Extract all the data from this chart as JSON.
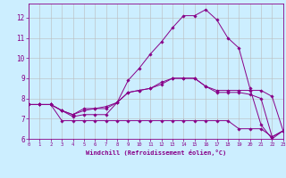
{
  "xlabel": "Windchill (Refroidissement éolien,°C)",
  "bg_color": "#cceeff",
  "line_color": "#880088",
  "grid_color": "#bbbbbb",
  "xmin": 0,
  "xmax": 23,
  "ymin": 6,
  "ymax": 12.7,
  "yticks": [
    6,
    7,
    8,
    9,
    10,
    11,
    12
  ],
  "xticks": [
    0,
    1,
    2,
    3,
    4,
    5,
    6,
    7,
    8,
    9,
    10,
    11,
    12,
    13,
    14,
    15,
    16,
    17,
    18,
    19,
    20,
    21,
    22,
    23
  ],
  "lines": [
    {
      "x": [
        0,
        1,
        2,
        3,
        4,
        5,
        6,
        7,
        8,
        9,
        10,
        11,
        12,
        13,
        14,
        15,
        16,
        17,
        18,
        19,
        20,
        21,
        22,
        23
      ],
      "y": [
        7.7,
        7.7,
        7.7,
        7.4,
        7.1,
        7.2,
        7.2,
        7.2,
        7.8,
        8.9,
        9.5,
        10.2,
        10.8,
        11.5,
        12.1,
        12.1,
        12.4,
        11.9,
        11.0,
        10.5,
        8.5,
        6.7,
        6.0,
        6.4
      ]
    },
    {
      "x": [
        0,
        1,
        2,
        3,
        4,
        5,
        6,
        7,
        8,
        9,
        10,
        11,
        12,
        13,
        14,
        15,
        16,
        17,
        18,
        19,
        20,
        21,
        22,
        23
      ],
      "y": [
        7.7,
        7.7,
        7.7,
        7.4,
        7.2,
        7.5,
        7.5,
        7.6,
        7.8,
        8.3,
        8.4,
        8.5,
        8.8,
        9.0,
        9.0,
        9.0,
        8.6,
        8.4,
        8.4,
        8.4,
        8.4,
        8.4,
        8.1,
        6.4
      ]
    },
    {
      "x": [
        0,
        1,
        2,
        3,
        4,
        5,
        6,
        7,
        8,
        9,
        10,
        11,
        12,
        13,
        14,
        15,
        16,
        17,
        18,
        19,
        20,
        21,
        22,
        23
      ],
      "y": [
        7.7,
        7.7,
        7.7,
        7.4,
        7.2,
        7.4,
        7.5,
        7.5,
        7.8,
        8.3,
        8.4,
        8.5,
        8.7,
        9.0,
        9.0,
        9.0,
        8.6,
        8.3,
        8.3,
        8.3,
        8.2,
        8.0,
        6.1,
        6.4
      ]
    },
    {
      "x": [
        0,
        1,
        2,
        3,
        4,
        5,
        6,
        7,
        8,
        9,
        10,
        11,
        12,
        13,
        14,
        15,
        16,
        17,
        18,
        19,
        20,
        21,
        22,
        23
      ],
      "y": [
        7.7,
        7.7,
        7.7,
        6.9,
        6.9,
        6.9,
        6.9,
        6.9,
        6.9,
        6.9,
        6.9,
        6.9,
        6.9,
        6.9,
        6.9,
        6.9,
        6.9,
        6.9,
        6.9,
        6.5,
        6.5,
        6.5,
        6.1,
        6.4
      ]
    }
  ]
}
